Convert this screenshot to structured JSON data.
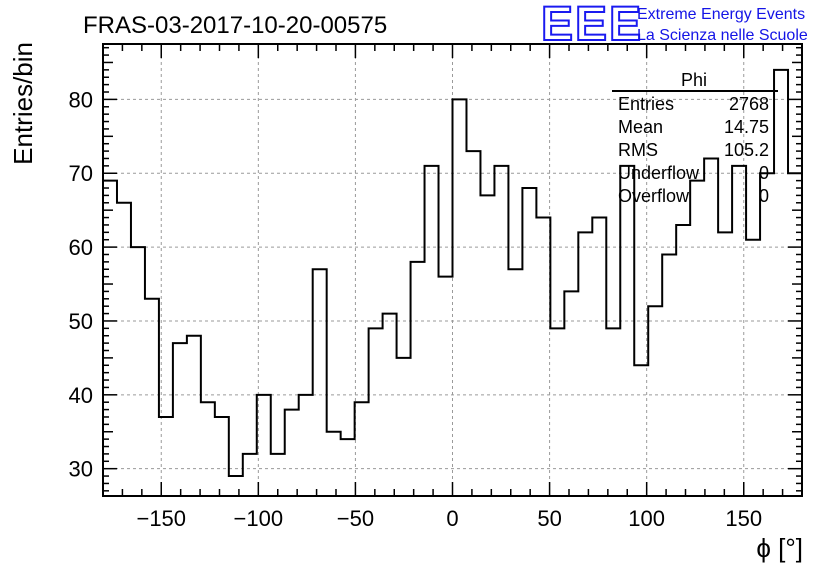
{
  "chart_data": {
    "type": "histogram",
    "title": "FRAS-03-2017-10-20-00575",
    "xlabel": "ϕ [°]",
    "ylabel": "Entries/bin",
    "xlim": [
      -180,
      180
    ],
    "ylim": [
      26.3,
      87.5
    ],
    "xticks": [
      -150,
      -100,
      -50,
      0,
      50,
      100,
      150
    ],
    "xtick_labels": [
      "−150",
      "−100",
      "−50",
      "0",
      "50",
      "100",
      "150"
    ],
    "yticks": [
      30,
      40,
      50,
      60,
      70,
      80
    ],
    "ytick_labels": [
      "30",
      "40",
      "50",
      "60",
      "70",
      "80"
    ],
    "grid": true,
    "bin_edges_start": -180,
    "bin_width": 7.2,
    "values": [
      69,
      66,
      60,
      53,
      37,
      47,
      48,
      39,
      37,
      29,
      32,
      40,
      32,
      38,
      40,
      57,
      35,
      34,
      39,
      49,
      51,
      45,
      58,
      71,
      56,
      80,
      73,
      67,
      71,
      57,
      68,
      64,
      49,
      54,
      62,
      64,
      49,
      71,
      44,
      52,
      59,
      63,
      69,
      72,
      62,
      71,
      61,
      70,
      84,
      70
    ]
  },
  "stats": {
    "title": "Phi",
    "rows": [
      {
        "label": "Entries",
        "value": "2768"
      },
      {
        "label": "Mean",
        "value": "14.75"
      },
      {
        "label": "RMS",
        "value": "105.2"
      },
      {
        "label": "Underflow",
        "value": "0"
      },
      {
        "label": "Overflow",
        "value": "0"
      }
    ]
  },
  "logo": {
    "mark": "EEE",
    "line1": "Extreme Energy Events",
    "line2": "La Scienza nelle Scuole"
  },
  "colors": {
    "line": "#000000",
    "logo": "#1a1af0"
  }
}
